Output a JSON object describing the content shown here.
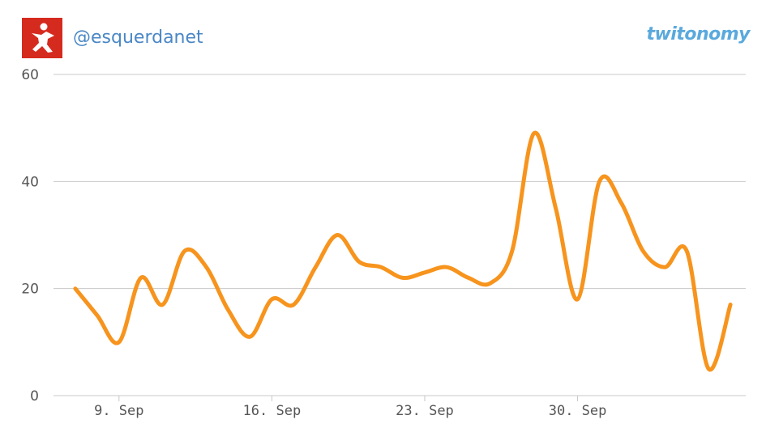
{
  "header": {
    "handle": "@esquerdanet",
    "brand": "twitonomy"
  },
  "colors": {
    "line": "#f7941d",
    "logo_bg": "#d52b1e",
    "grid": "#c8c8c8",
    "handle": "#4a87c5",
    "brand": "#5aa9dd"
  },
  "chart_data": {
    "type": "line",
    "title": "",
    "xlabel": "",
    "ylabel": "",
    "ylim": [
      0,
      60
    ],
    "yticks": [
      0,
      20,
      40,
      60
    ],
    "xticks": [
      {
        "day": 9,
        "label": "9. Sep"
      },
      {
        "day": 16,
        "label": "16. Sep"
      },
      {
        "day": 23,
        "label": "23. Sep"
      },
      {
        "day": 30,
        "label": "30. Sep"
      }
    ],
    "grid": true,
    "legend": "none",
    "series": [
      {
        "x": [
          7,
          8,
          9,
          10,
          11,
          12,
          13,
          14,
          15,
          16,
          17,
          18,
          19,
          20,
          21,
          22,
          23,
          24,
          25,
          26,
          27,
          28,
          29,
          30,
          31,
          32,
          33,
          34,
          35,
          36,
          37
        ],
        "y": [
          20,
          15,
          10,
          22,
          17,
          27,
          24,
          16,
          11,
          18,
          17,
          24,
          30,
          25,
          24,
          22,
          23,
          24,
          22,
          21,
          27,
          49,
          35,
          18,
          40,
          36,
          27,
          24,
          27,
          5,
          17
        ]
      }
    ]
  }
}
